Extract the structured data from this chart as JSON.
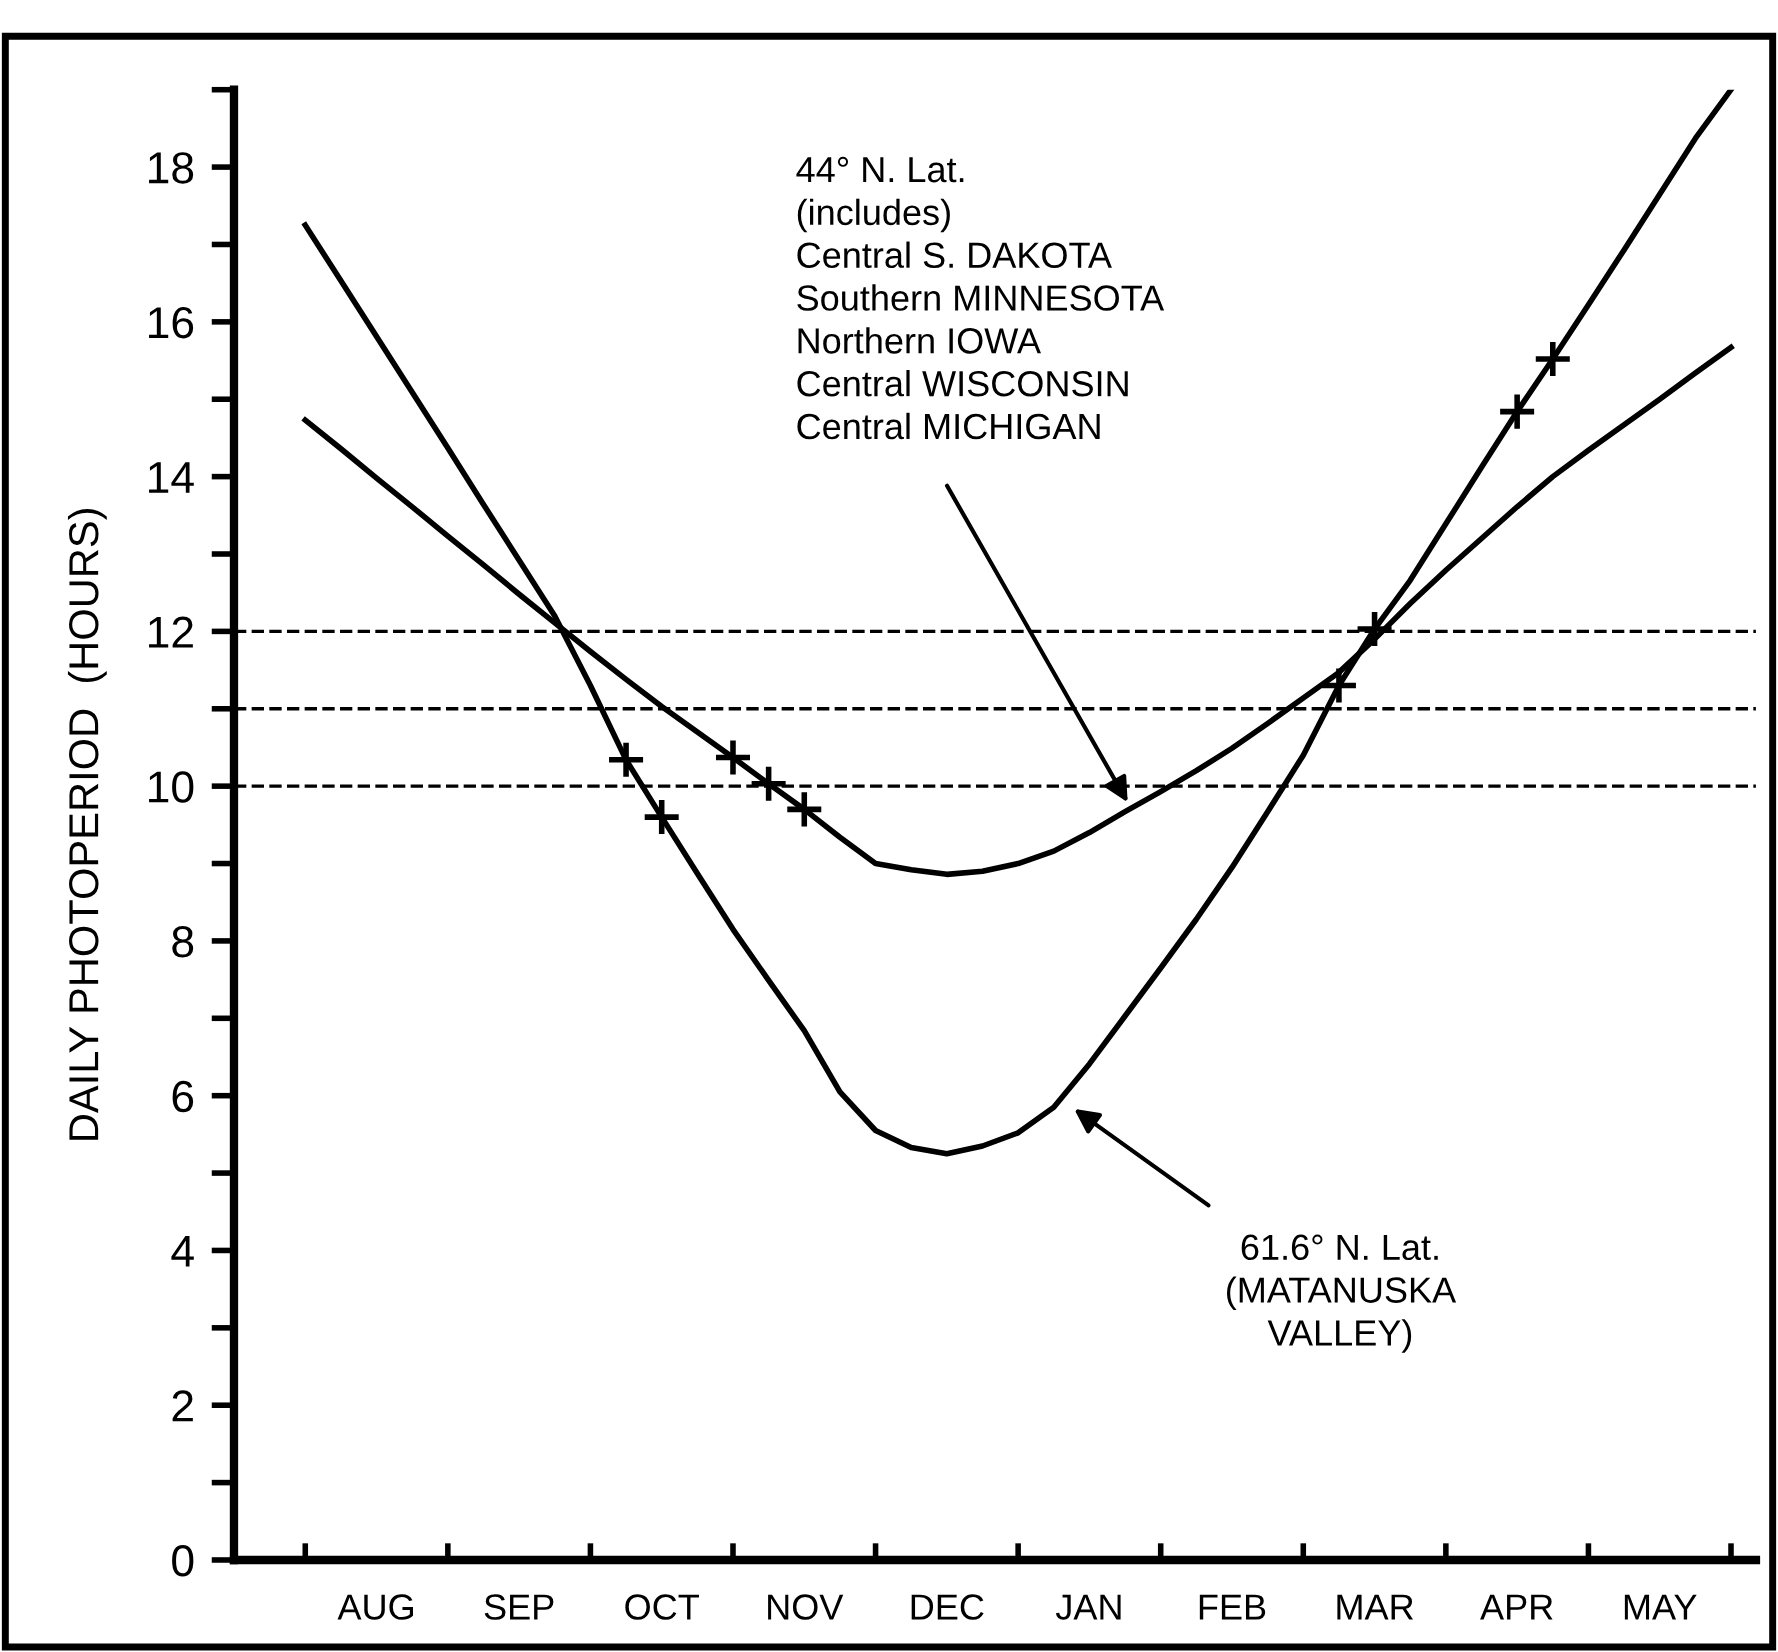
{
  "chart_data": {
    "type": "line",
    "ylabel": "DAILY PHOTOPERIOD  (HOURS)",
    "categories": [
      null,
      null,
      "AUG",
      null,
      null,
      null,
      "SEP",
      null,
      null,
      null,
      "OCT",
      null,
      null,
      null,
      "NOV",
      null,
      null,
      null,
      "DEC",
      null,
      null,
      null,
      "JAN",
      null,
      null,
      null,
      "FEB",
      null,
      null,
      null,
      "MAR",
      null,
      null,
      null,
      "APR",
      null,
      null,
      null,
      "MAY",
      null,
      null
    ],
    "ylim": [
      0,
      19
    ],
    "yticks": [
      0,
      2,
      4,
      6,
      8,
      10,
      12,
      14,
      16,
      18
    ],
    "grid": false,
    "legend": false,
    "marker": "none",
    "line_style": "solid",
    "series": [
      {
        "color": "#000000",
        "values": [
          17.25,
          16.53,
          15.81,
          15.09,
          14.37,
          13.64,
          12.92,
          12.2,
          11.3,
          10.34,
          9.6,
          8.87,
          8.15,
          7.49,
          6.84,
          6.05,
          5.55,
          5.33,
          5.25,
          5.35,
          5.52,
          5.85,
          6.41,
          7.03,
          7.65,
          8.28,
          8.95,
          9.67,
          10.4,
          11.3,
          12.03,
          12.66,
          13.39,
          14.12,
          14.84,
          15.52,
          16.22,
          16.93,
          17.65,
          18.37,
          19.0
        ]
      },
      {
        "color": "#000000",
        "values": [
          14.73,
          14.36,
          13.98,
          13.61,
          13.23,
          12.86,
          12.48,
          12.11,
          11.74,
          11.38,
          11.03,
          10.7,
          10.37,
          10.03,
          9.7,
          9.34,
          9.0,
          8.92,
          8.86,
          8.9,
          9.0,
          9.16,
          9.4,
          9.67,
          9.93,
          10.2,
          10.49,
          10.81,
          11.14,
          11.47,
          11.9,
          12.36,
          12.79,
          13.2,
          13.61,
          14.0,
          14.34,
          14.67,
          15.0,
          15.34,
          15.67
        ]
      },
      {
        "type": "scatter",
        "marker": "cross",
        "color": "#000000",
        "values": [
          null,
          null,
          null,
          null,
          null,
          null,
          null,
          null,
          null,
          10.34,
          9.6,
          null,
          10.37,
          10.03,
          9.7,
          null,
          null,
          null,
          null,
          null,
          null,
          null,
          null,
          null,
          null,
          null,
          null,
          null,
          null,
          11.3,
          12.03,
          null,
          null,
          null,
          14.84,
          15.52,
          null,
          null,
          null,
          null,
          null
        ]
      }
    ],
    "ref_lines": [
      {
        "axis": "y",
        "value": 12,
        "label": null,
        "color": "#000000",
        "line_style": "dashed"
      },
      {
        "axis": "y",
        "value": 11,
        "label": null,
        "color": "#000000",
        "line_style": "dashed"
      },
      {
        "axis": "y",
        "value": 10,
        "label": null,
        "color": "#000000",
        "line_style": "dashed"
      }
    ],
    "annotations": [
      "44° N. Lat.\n(includes)\nCentral S. DAKOTA\nSouthern MINNESOTA\nNorthern IOWA\nCentral WISCONSIN\nCentral MICHIGAN",
      "61.6° N. Lat.\n(MATANUSKA\nVALLEY)"
    ]
  }
}
